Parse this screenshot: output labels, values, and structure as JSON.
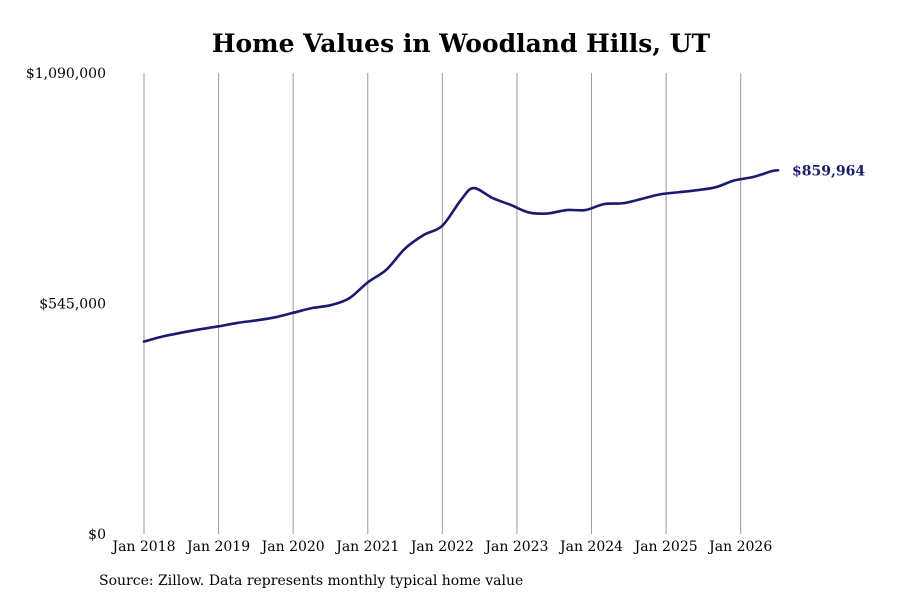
{
  "source_note": "Source: Zillow. Data represents monthly typical home value",
  "chart_data": {
    "type": "line",
    "title": "Home Values in Woodland Hills, UT",
    "xlabel": "",
    "ylabel": "",
    "ylim": [
      0,
      1090000
    ],
    "yticks": [
      0,
      545000,
      1090000
    ],
    "ytick_labels": [
      "$0",
      "$545,000",
      "$1,090,000"
    ],
    "xlim": [
      "2018-01",
      "2026-07"
    ],
    "xticks": [
      "2018-01",
      "2019-01",
      "2020-01",
      "2021-01",
      "2022-01",
      "2023-01",
      "2024-01",
      "2025-01",
      "2026-01"
    ],
    "xtick_labels": [
      "Jan 2018",
      "Jan 2019",
      "Jan 2020",
      "Jan 2021",
      "Jan 2022",
      "Jan 2023",
      "Jan 2024",
      "Jan 2025",
      "Jan 2026"
    ],
    "grid": "vertical",
    "line_color": "#1a1a6e",
    "end_label": "$859,964",
    "series": [
      {
        "x": [
          "2018-01",
          "2018-04",
          "2018-07",
          "2018-10",
          "2019-01",
          "2019-04",
          "2019-07",
          "2019-10",
          "2020-01",
          "2020-04",
          "2020-07",
          "2020-10",
          "2021-01",
          "2021-04",
          "2021-07",
          "2021-10",
          "2022-01",
          "2022-04",
          "2022-06",
          "2022-09",
          "2022-12",
          "2023-03",
          "2023-06",
          "2023-09",
          "2023-12",
          "2024-03",
          "2024-06",
          "2024-09",
          "2024-12",
          "2025-03",
          "2025-06",
          "2025-09",
          "2025-12",
          "2026-03",
          "2026-06",
          "2026-07"
        ],
        "values": [
          455000,
          467000,
          476000,
          484000,
          491000,
          499000,
          505000,
          512000,
          523000,
          534000,
          541000,
          557000,
          595000,
          625000,
          675000,
          707000,
          729000,
          790000,
          818000,
          795000,
          778000,
          760000,
          758000,
          766000,
          766000,
          780000,
          782000,
          792000,
          803000,
          808000,
          813000,
          820000,
          836000,
          844000,
          858000,
          859964
        ]
      }
    ]
  }
}
